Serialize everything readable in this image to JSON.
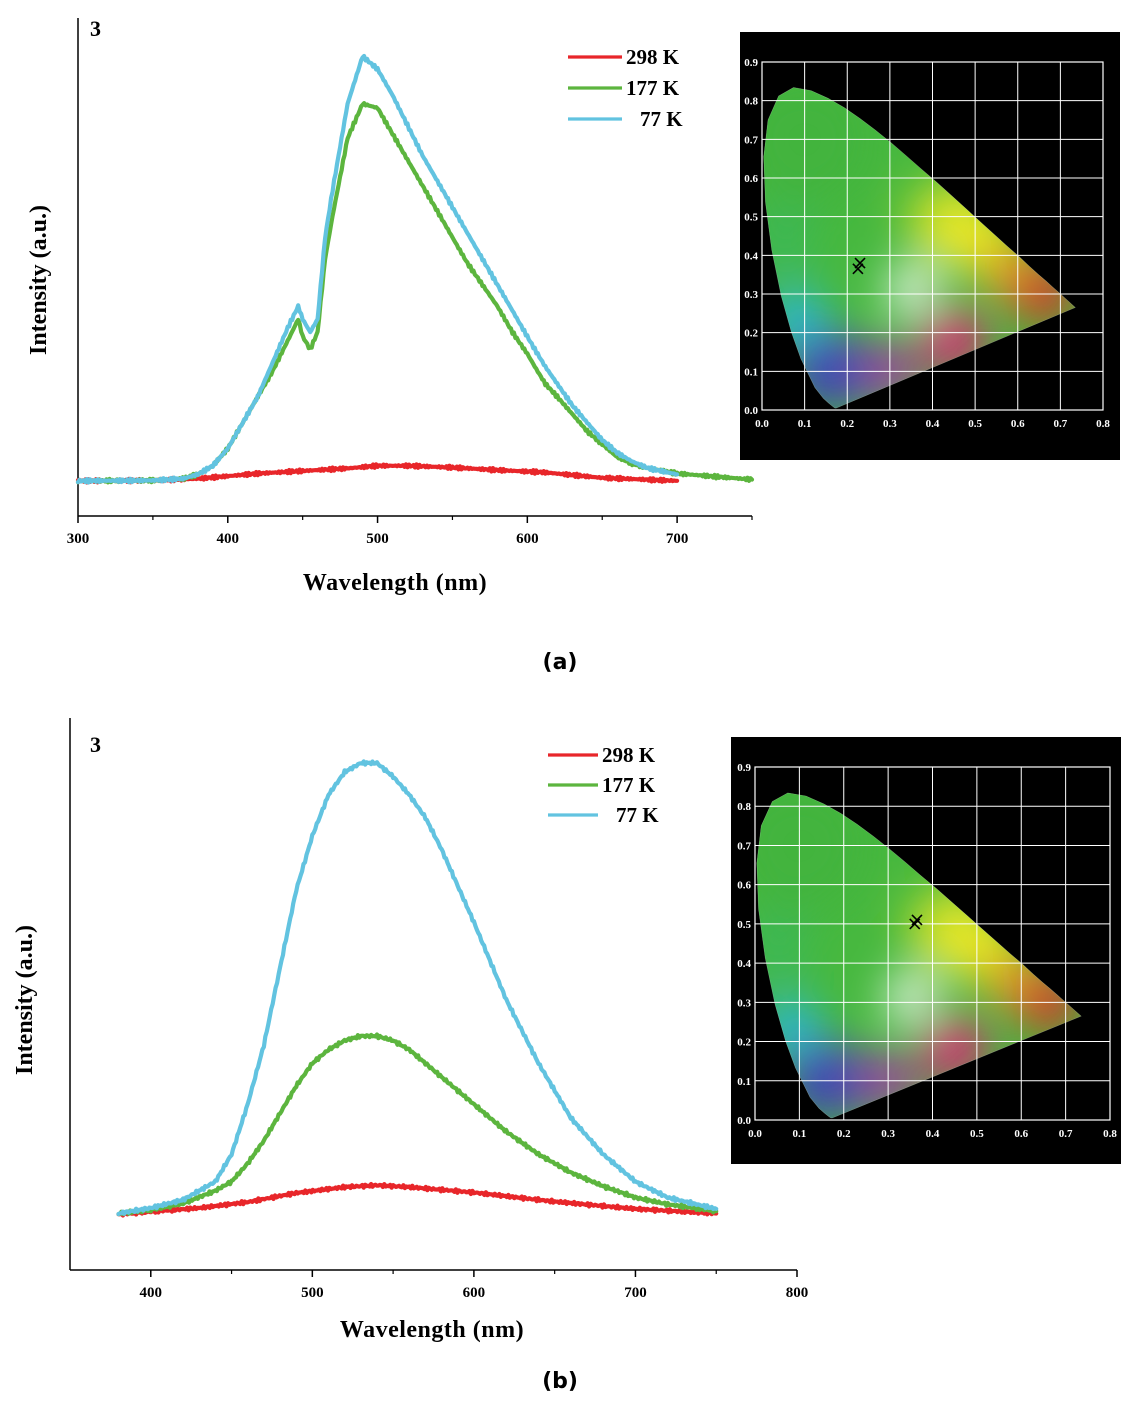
{
  "chart_data": [
    {
      "type": "line",
      "panel_label": "(a)",
      "compound_label": "3",
      "xlabel": "Wavelength (nm)",
      "ylabel": "Intensity (a.u.)",
      "xlim": [
        300,
        750
      ],
      "ylim": [
        0,
        1.05
      ],
      "xticks": [
        300,
        400,
        500,
        600,
        700
      ],
      "yticks_shown": false,
      "legend_position": "top-center",
      "series": [
        {
          "name": "298 K",
          "color": "#e8262a",
          "x": [
            300,
            350,
            380,
            420,
            450,
            480,
            500,
            520,
            550,
            580,
            610,
            650,
            700
          ],
          "y": [
            0.005,
            0.006,
            0.01,
            0.022,
            0.028,
            0.034,
            0.04,
            0.04,
            0.036,
            0.03,
            0.025,
            0.012,
            0.005
          ]
        },
        {
          "name": "177 K",
          "color": "#5cb53e",
          "x": [
            300,
            350,
            370,
            380,
            390,
            400,
            410,
            420,
            430,
            440,
            447,
            450,
            455,
            460,
            465,
            470,
            480,
            490,
            500,
            510,
            520,
            530,
            540,
            550,
            560,
            570,
            580,
            590,
            600,
            605,
            612,
            620,
            630,
            640,
            650,
            660,
            670,
            680,
            700,
            750
          ],
          "y": [
            0.005,
            0.006,
            0.01,
            0.02,
            0.04,
            0.08,
            0.14,
            0.2,
            0.26,
            0.33,
            0.38,
            0.34,
            0.31,
            0.35,
            0.52,
            0.62,
            0.8,
            0.88,
            0.87,
            0.81,
            0.75,
            0.69,
            0.63,
            0.57,
            0.51,
            0.46,
            0.41,
            0.35,
            0.3,
            0.27,
            0.23,
            0.2,
            0.16,
            0.12,
            0.09,
            0.06,
            0.045,
            0.035,
            0.022,
            0.008
          ]
        },
        {
          "name": "77 K",
          "color": "#62c3e0",
          "x": [
            300,
            350,
            370,
            380,
            390,
            400,
            410,
            420,
            430,
            440,
            447,
            450,
            455,
            460,
            465,
            470,
            480,
            490,
            500,
            510,
            520,
            530,
            540,
            550,
            560,
            570,
            580,
            590,
            600,
            605,
            612,
            620,
            630,
            640,
            650,
            660,
            670,
            680,
            700
          ],
          "y": [
            0.005,
            0.006,
            0.01,
            0.02,
            0.04,
            0.08,
            0.14,
            0.2,
            0.28,
            0.36,
            0.41,
            0.38,
            0.35,
            0.38,
            0.57,
            0.68,
            0.88,
            0.99,
            0.96,
            0.9,
            0.83,
            0.76,
            0.7,
            0.64,
            0.58,
            0.52,
            0.46,
            0.4,
            0.34,
            0.31,
            0.27,
            0.23,
            0.18,
            0.14,
            0.1,
            0.07,
            0.05,
            0.035,
            0.02
          ]
        }
      ],
      "inset": {
        "type": "cie-chromaticity",
        "xlim": [
          0,
          0.8
        ],
        "ylim": [
          0,
          0.9
        ],
        "xticks": [
          "0.0",
          "0.1",
          "0.2",
          "0.3",
          "0.4",
          "0.5",
          "0.6",
          "0.7",
          "0.8"
        ],
        "yticks": [
          "0.0",
          "0.1",
          "0.2",
          "0.3",
          "0.4",
          "0.5",
          "0.6",
          "0.7",
          "0.8",
          "0.9"
        ],
        "grid": true,
        "points": [
          {
            "x": 0.23,
            "y": 0.38
          },
          {
            "x": 0.225,
            "y": 0.365
          }
        ]
      }
    },
    {
      "type": "line",
      "panel_label": "(b)",
      "compound_label": "3",
      "xlabel": "Wavelength (nm)",
      "ylabel": "Intensity (a.u.)",
      "xlim": [
        350,
        800
      ],
      "ylim": [
        0,
        1.05
      ],
      "xticks": [
        400,
        500,
        600,
        700,
        800
      ],
      "yticks_shown": false,
      "legend_position": "top-center",
      "series": [
        {
          "name": "298 K",
          "color": "#e8262a",
          "x": [
            380,
            400,
            430,
            460,
            490,
            520,
            540,
            560,
            600,
            650,
            700,
            750
          ],
          "y": [
            0.008,
            0.014,
            0.022,
            0.035,
            0.055,
            0.068,
            0.072,
            0.068,
            0.056,
            0.036,
            0.02,
            0.01
          ]
        },
        {
          "name": "177 K",
          "color": "#5cb53e",
          "x": [
            380,
            400,
            420,
            440,
            450,
            460,
            470,
            480,
            490,
            500,
            510,
            520,
            530,
            540,
            550,
            560,
            570,
            580,
            590,
            600,
            620,
            640,
            660,
            680,
            700,
            720,
            750
          ],
          "y": [
            0.01,
            0.018,
            0.032,
            0.06,
            0.08,
            0.12,
            0.17,
            0.23,
            0.29,
            0.34,
            0.37,
            0.39,
            0.4,
            0.4,
            0.39,
            0.37,
            0.34,
            0.31,
            0.28,
            0.25,
            0.19,
            0.14,
            0.1,
            0.07,
            0.045,
            0.03,
            0.015
          ]
        },
        {
          "name": "77 K",
          "color": "#62c3e0",
          "x": [
            380,
            400,
            420,
            440,
            450,
            460,
            470,
            480,
            490,
            500,
            510,
            520,
            530,
            540,
            550,
            560,
            570,
            580,
            590,
            600,
            620,
            640,
            660,
            680,
            700,
            720,
            750
          ],
          "y": [
            0.01,
            0.022,
            0.04,
            0.08,
            0.14,
            0.25,
            0.38,
            0.55,
            0.72,
            0.84,
            0.93,
            0.98,
            1.0,
            1.0,
            0.97,
            0.93,
            0.88,
            0.81,
            0.73,
            0.65,
            0.48,
            0.34,
            0.22,
            0.14,
            0.08,
            0.045,
            0.02
          ]
        }
      ],
      "inset": {
        "type": "cie-chromaticity",
        "xlim": [
          0,
          0.8
        ],
        "ylim": [
          0,
          0.9
        ],
        "xticks": [
          "0.0",
          "0.1",
          "0.2",
          "0.3",
          "0.4",
          "0.5",
          "0.6",
          "0.7",
          "0.8"
        ],
        "yticks": [
          "0.0",
          "0.1",
          "0.2",
          "0.3",
          "0.4",
          "0.5",
          "0.6",
          "0.7",
          "0.8",
          "0.9"
        ],
        "grid": true,
        "points": [
          {
            "x": 0.365,
            "y": 0.51
          },
          {
            "x": 0.36,
            "y": 0.5
          }
        ]
      }
    }
  ]
}
